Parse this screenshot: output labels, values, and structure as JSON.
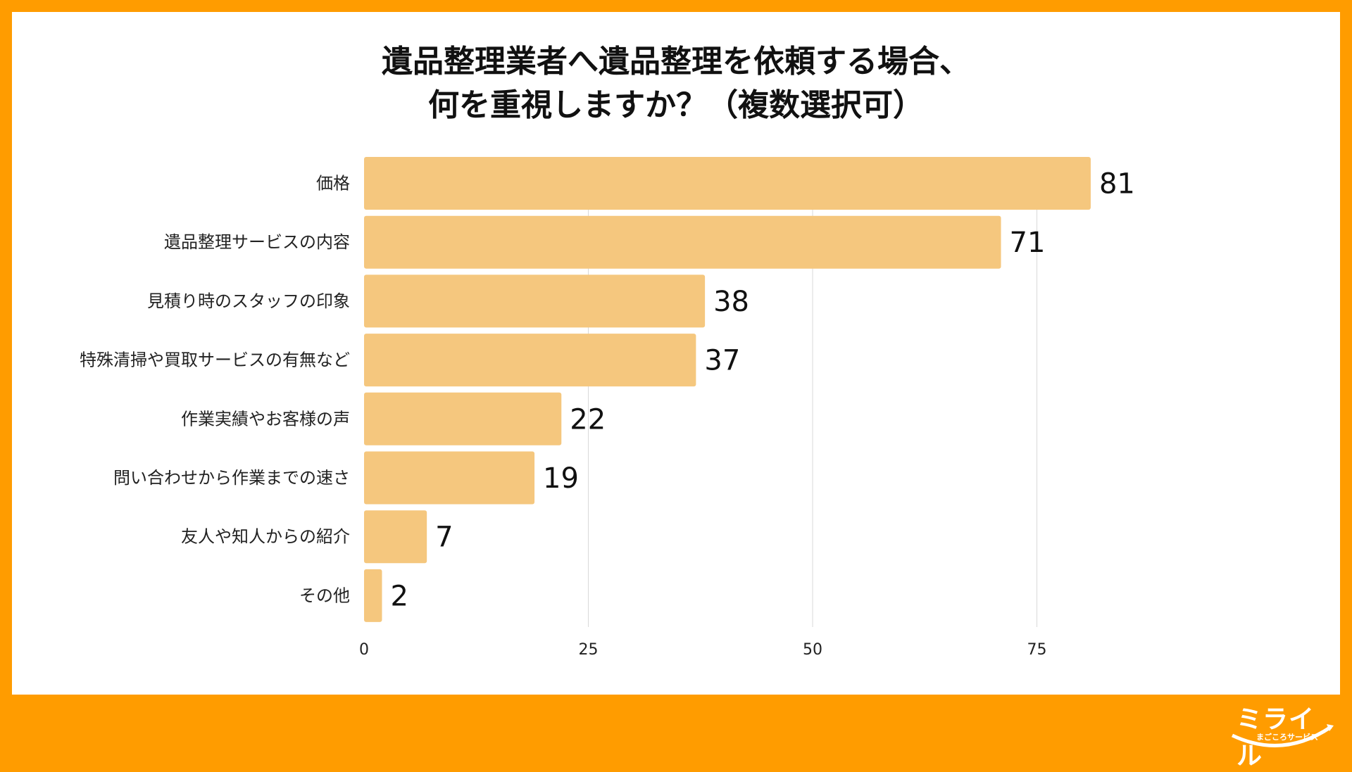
{
  "title_lines": [
    "遺品整理業者へ遺品整理を依頼する場合、",
    "何を重視しますか？（複数選択可）"
  ],
  "colors": {
    "background": "#ff9c00",
    "bar": "#f5c77e",
    "grid": "#d9d9d9",
    "logo": "#ffffff"
  },
  "logo": {
    "text": "ミライル",
    "sub": "まごころサービス"
  },
  "chart_data": {
    "type": "bar",
    "orientation": "horizontal",
    "title": "遺品整理業者へ遺品整理を依頼する場合、何を重視しますか？（複数選択可）",
    "categories": [
      "価格",
      "遺品整理サービスの内容",
      "見積り時のスタッフの印象",
      "特殊清掃や買取サービスの有無など",
      "作業実績やお客様の声",
      "問い合わせから作業までの速さ",
      "友人や知人からの紹介",
      "その他"
    ],
    "values": [
      81,
      71,
      38,
      37,
      22,
      19,
      7,
      2
    ],
    "xticks": [
      "0",
      "25",
      "50",
      "75"
    ],
    "xlim": [
      0,
      81
    ],
    "grid": true,
    "data_labels": true
  }
}
